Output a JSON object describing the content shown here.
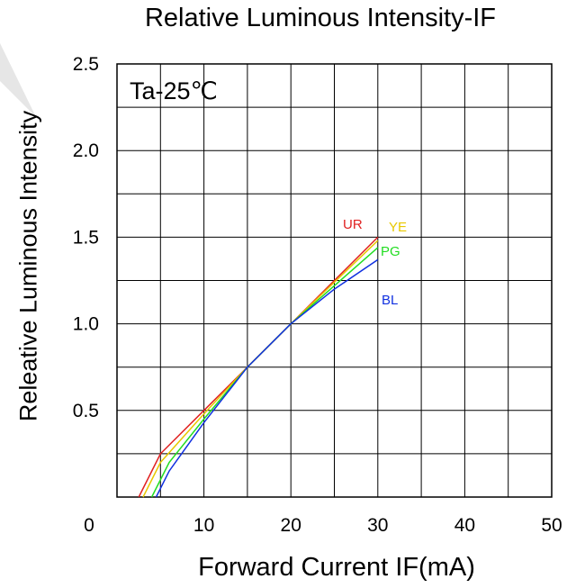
{
  "chart_data": {
    "type": "line",
    "title": "Relative Luminous Intensity-IF",
    "xlabel": "Forward Current IF(mA)",
    "ylabel": "Releative Luminous Intensity",
    "xlim": [
      0,
      50
    ],
    "ylim": [
      0,
      2.5
    ],
    "x_ticks": [
      "0",
      "10",
      "20",
      "30",
      "40",
      "50"
    ],
    "y_ticks": [
      "0.5",
      "1.0",
      "1.5",
      "2.0",
      "2.5"
    ],
    "grid": true,
    "annotation": "Ta-25℃",
    "series": [
      {
        "name": "UR",
        "color": "#e02020",
        "x": [
          2.5,
          5,
          10,
          15,
          20,
          25,
          30
        ],
        "y": [
          0.0,
          0.25,
          0.5,
          0.75,
          1.0,
          1.25,
          1.5
        ]
      },
      {
        "name": "YE",
        "color": "#e8c800",
        "x": [
          3,
          5,
          10,
          15,
          20,
          25,
          30
        ],
        "y": [
          0.0,
          0.2,
          0.48,
          0.75,
          1.0,
          1.24,
          1.48
        ]
      },
      {
        "name": "PG",
        "color": "#22dd22",
        "x": [
          4,
          6,
          10,
          15,
          20,
          25,
          30
        ],
        "y": [
          0.0,
          0.2,
          0.45,
          0.75,
          1.0,
          1.22,
          1.44
        ]
      },
      {
        "name": "BL",
        "color": "#1030e0",
        "x": [
          4.5,
          6,
          10,
          15,
          20,
          25,
          30
        ],
        "y": [
          0.0,
          0.15,
          0.43,
          0.75,
          1.0,
          1.2,
          1.37
        ]
      }
    ]
  }
}
